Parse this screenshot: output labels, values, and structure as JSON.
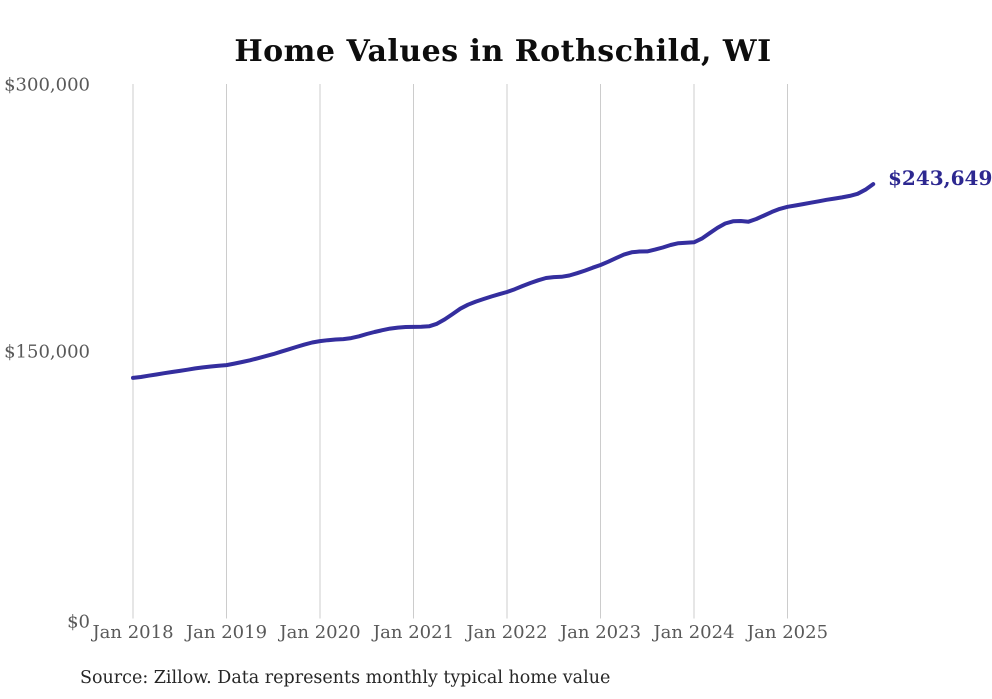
{
  "chart_data": {
    "type": "line",
    "title": "Home Values in Rothschild, WI",
    "source_note": "Source: Zillow. Data represents monthly typical home value",
    "end_label": "$243,649",
    "latest_value": 243649,
    "xlabel": "",
    "ylabel": "",
    "ylim": [
      0,
      300000
    ],
    "grid": "vertical-only",
    "legend": "none",
    "xtick_labels": [
      "Jan 2018",
      "Jan 2019",
      "Jan 2020",
      "Jan 2021",
      "Jan 2022",
      "Jan 2023",
      "Jan 2024",
      "Jan 2025"
    ],
    "xtick_month_indices": [
      0,
      12,
      24,
      36,
      48,
      60,
      72,
      84
    ],
    "ytick_labels": [
      "$0",
      "$150,000",
      "$300,000"
    ],
    "ytick_values": [
      0,
      150000,
      300000
    ],
    "colors": {
      "line": "#342e9e",
      "end_label": "#2d2890",
      "grid": "#cccccc",
      "axis_text": "#595959",
      "title": "#0d0d0d",
      "source": "#262626",
      "background": "#ffffff"
    },
    "series": [
      {
        "name": "Monthly typical home value",
        "x_start": "2018-01",
        "x_step_months": 1,
        "values": [
          134600,
          135100,
          135800,
          136500,
          137200,
          137900,
          138500,
          139200,
          139900,
          140500,
          141000,
          141400,
          141800,
          142600,
          143500,
          144500,
          145600,
          146800,
          148000,
          149300,
          150700,
          152000,
          153300,
          154500,
          155300,
          155800,
          156200,
          156400,
          157000,
          158000,
          159300,
          160400,
          161400,
          162300,
          162900,
          163200,
          163300,
          163400,
          163600,
          165000,
          167500,
          170500,
          173500,
          175800,
          177500,
          179000,
          180400,
          181700,
          182900,
          184500,
          186300,
          188000,
          189500,
          190800,
          191300,
          191500,
          192200,
          193500,
          195000,
          196600,
          198100,
          200000,
          202000,
          204000,
          205300,
          205700,
          205800,
          206800,
          208000,
          209400,
          210400,
          210700,
          210900,
          213000,
          216000,
          219000,
          221500,
          222700,
          222900,
          222500,
          224000,
          226000,
          228000,
          229700,
          230900,
          231600,
          232400,
          233200,
          234000,
          234800,
          235500,
          236200,
          237000,
          238200,
          240500,
          243649
        ]
      }
    ]
  }
}
